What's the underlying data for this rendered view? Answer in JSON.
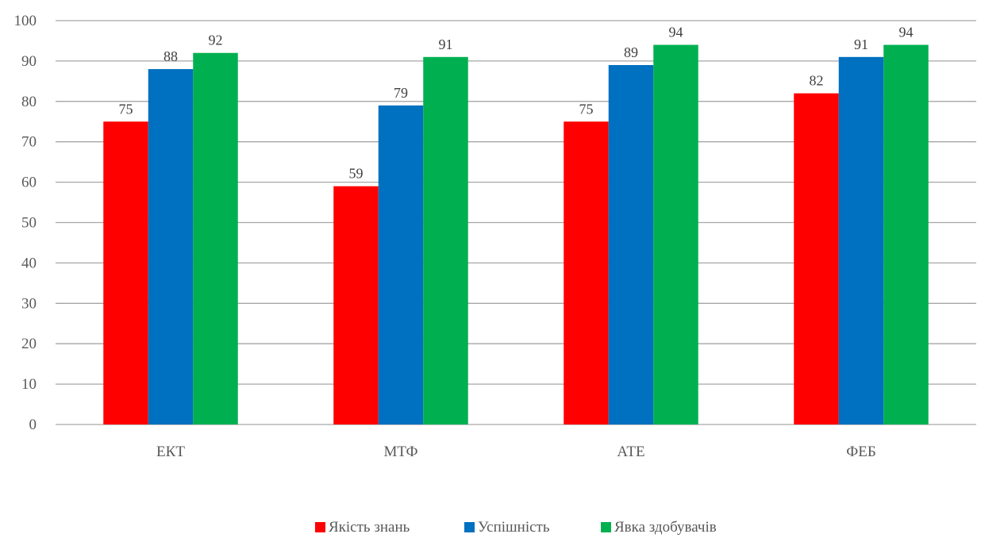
{
  "chart_data": {
    "type": "bar",
    "categories": [
      "ЕКТ",
      "МТФ",
      "АТЕ",
      "ФЕБ"
    ],
    "series": [
      {
        "name": "Якість знань",
        "values": [
          75,
          59,
          75,
          82
        ],
        "color": "#ff0000"
      },
      {
        "name": "Успішність",
        "values": [
          88,
          79,
          89,
          91
        ],
        "color": "#0070c0"
      },
      {
        "name": "Явка здобувачів",
        "values": [
          92,
          91,
          94,
          94
        ],
        "color": "#00b050"
      }
    ],
    "ylim": [
      0,
      100
    ],
    "yticks": [
      0,
      10,
      20,
      30,
      40,
      50,
      60,
      70,
      80,
      90,
      100
    ],
    "grid": true,
    "gridline_color": "#a6a6a6",
    "legend_position": "bottom"
  }
}
